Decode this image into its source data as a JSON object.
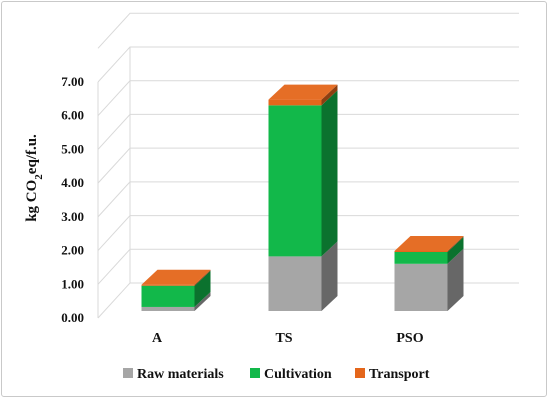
{
  "chart_data": {
    "type": "bar",
    "stacked": true,
    "three_d": true,
    "ylabel": "kg CO2eq/f.u.",
    "ylim": [
      0,
      7
    ],
    "yticks": [
      "0.00",
      "1.00",
      "2.00",
      "3.00",
      "4.00",
      "5.00",
      "6.00",
      "7.00"
    ],
    "categories": [
      "A",
      "TS",
      "PSO"
    ],
    "series": [
      {
        "name": "Raw materials",
        "values": [
          0.12,
          1.62,
          1.4
        ],
        "color": "#a6a6a6"
      },
      {
        "name": "Cultivation",
        "values": [
          0.63,
          4.48,
          0.35
        ],
        "color": "#12b84a"
      },
      {
        "name": "Transport",
        "values": [
          0.03,
          0.17,
          0.03
        ],
        "color": "#e4661b"
      }
    ],
    "grid": true,
    "legend_position": "bottom"
  }
}
